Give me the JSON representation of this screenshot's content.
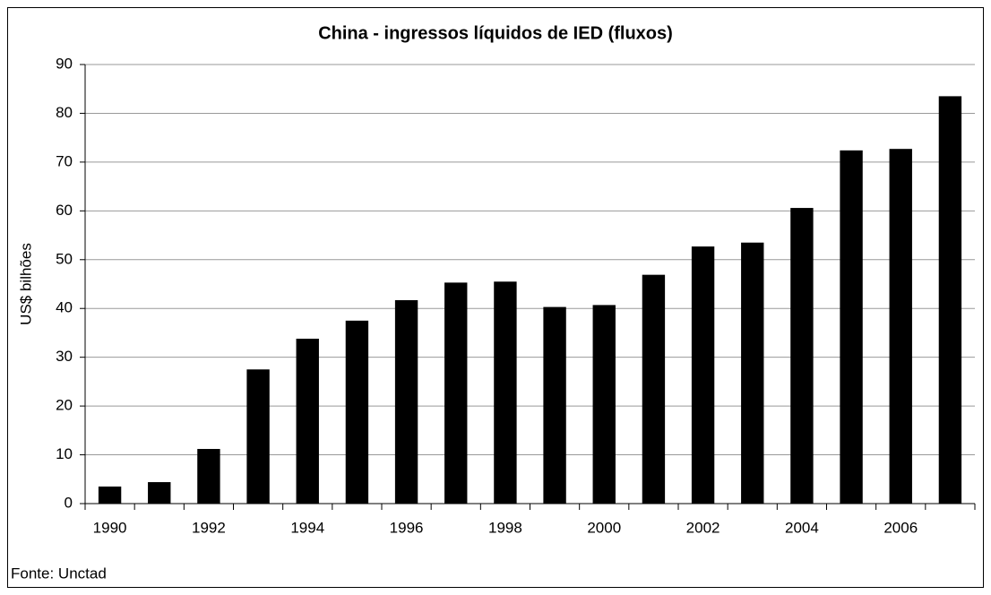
{
  "chart_data": {
    "type": "bar",
    "title": "China - ingressos líquidos de IED (fluxos)",
    "y_label": "US$ bilhões",
    "source": "Fonte: Unctad",
    "categories": [
      "1990",
      null,
      "1992",
      null,
      "1994",
      null,
      "1996",
      null,
      "1998",
      null,
      "2000",
      null,
      "2002",
      null,
      "2004",
      null,
      "2006",
      null
    ],
    "values": [
      3.5,
      4.4,
      11.2,
      27.5,
      33.8,
      37.5,
      41.7,
      45.3,
      45.5,
      40.3,
      40.7,
      46.9,
      52.7,
      53.5,
      60.6,
      72.4,
      72.7,
      83.5
    ],
    "color": "#000000",
    "ylim": [
      0,
      90
    ],
    "yticks": [
      0,
      10,
      20,
      30,
      40,
      50,
      60,
      70,
      80,
      90
    ],
    "grid": true
  }
}
